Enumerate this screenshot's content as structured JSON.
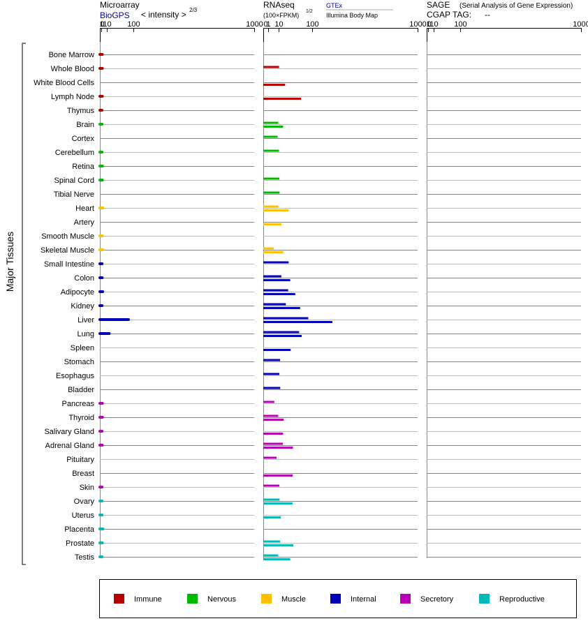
{
  "header": {
    "micro_title": "Microarray",
    "micro_source": "BioGPS",
    "micro_scale_label": "< intensity >",
    "micro_scale_exp": "2/3",
    "rna_title": "RNAseq",
    "rna_scale_label": "(100×FPKM)",
    "rna_scale_exp": "1/2",
    "rna_source1": "GTEx",
    "rna_source2": "Illumina Body Map",
    "sage_title": "SAGE",
    "sage_subtitle": "(Serial Analysis of Gene Expression)",
    "cgap_label": "CGAP TAG:",
    "cgap_value": "--"
  },
  "side_label": "Major Tissues",
  "tick_labels": [
    "0",
    "1",
    "10",
    "100",
    "1000"
  ],
  "colors": {
    "Immune": "#b90000",
    "Nervous": "#00b900",
    "Muscle": "#fec000",
    "Internal": "#0000b9",
    "Secretory": "#b900b9",
    "Reproductive": "#00b9b9"
  },
  "legend": [
    "Immune",
    "Nervous",
    "Muscle",
    "Internal",
    "Secretory",
    "Reproductive"
  ],
  "chart_data": {
    "type": "bar",
    "xscale": "intensity^(2/3) for microarray; (100xFPKM)^(1/2) for RNAseq",
    "xticks": [
      0,
      1,
      10,
      100,
      1000
    ],
    "categories": [
      "Bone Marrow",
      "Whole Blood",
      "White Blood Cells",
      "Lymph Node",
      "Thymus",
      "Brain",
      "Cortex",
      "Cerebellum",
      "Retina",
      "Spinal Cord",
      "Tibial Nerve",
      "Heart",
      "Artery",
      "Smooth Muscle",
      "Skeletal Muscle",
      "Small Intestine",
      "Colon",
      "Adipocyte",
      "Kidney",
      "Liver",
      "Lung",
      "Spleen",
      "Stomach",
      "Esophagus",
      "Bladder",
      "Pancreas",
      "Thyroid",
      "Salivary Gland",
      "Adrenal Gland",
      "Pituitary",
      "Breast",
      "Skin",
      "Ovary",
      "Uterus",
      "Placenta",
      "Prostate",
      "Testis"
    ],
    "groups": [
      "Immune",
      "Immune",
      "Immune",
      "Immune",
      "Immune",
      "Nervous",
      "Nervous",
      "Nervous",
      "Nervous",
      "Nervous",
      "Nervous",
      "Muscle",
      "Muscle",
      "Muscle",
      "Muscle",
      "Internal",
      "Internal",
      "Internal",
      "Internal",
      "Internal",
      "Internal",
      "Internal",
      "Internal",
      "Internal",
      "Internal",
      "Secretory",
      "Secretory",
      "Secretory",
      "Secretory",
      "Secretory",
      "Secretory",
      "Secretory",
      "Reproductive",
      "Reproductive",
      "Reproductive",
      "Reproductive",
      "Reproductive"
    ],
    "series": [
      {
        "name": "Microarray",
        "values": [
          2.0,
          2.1,
          null,
          2.1,
          1.6,
          1.7,
          null,
          1.7,
          2.3,
          2.1,
          null,
          2.7,
          null,
          2.1,
          2.4,
          1.7,
          1.9,
          2.5,
          1.7,
          80,
          15,
          null,
          null,
          null,
          null,
          2.2,
          2.3,
          1.7,
          2.0,
          null,
          null,
          1.7,
          1.7,
          1.7,
          3.0,
          2.1,
          1.7
        ]
      },
      {
        "name": "GTEx",
        "values": [
          null,
          10.5,
          null,
          null,
          null,
          9.4,
          8.6,
          10.4,
          null,
          10.8,
          11.2,
          9.4,
          null,
          null,
          4.6,
          27,
          13.7,
          26,
          21.4,
          85,
          54,
          null,
          11.9,
          10.9,
          12.1,
          5.1,
          9.4,
          null,
          16,
          7.5,
          null,
          10.9,
          11.2,
          null,
          null,
          11.9,
          9.4
        ]
      },
      {
        "name": "Illumina Body Map",
        "values": [
          null,
          null,
          20,
          60,
          null,
          16.5,
          null,
          null,
          null,
          null,
          null,
          27,
          14,
          null,
          17,
          null,
          30.5,
          43,
          57,
          200,
          62,
          31.5,
          null,
          null,
          null,
          null,
          17.5,
          16.5,
          37,
          null,
          36,
          null,
          36,
          12.8,
          null,
          38,
          30.5
        ]
      }
    ],
    "legend_position": "bottom",
    "legend": [
      "Immune",
      "Nervous",
      "Muscle",
      "Internal",
      "Secretory",
      "Reproductive"
    ]
  }
}
